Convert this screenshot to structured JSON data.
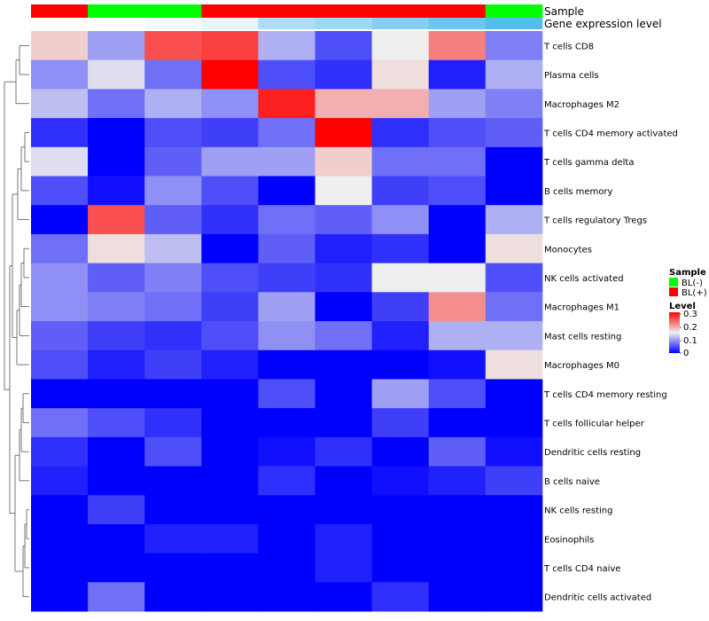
{
  "chart_data": {
    "type": "heatmap",
    "annotation_labels": {
      "sample": "Sample",
      "expression": "Gene expression level"
    },
    "rows": [
      "T cells CD8",
      "Plasma cells",
      "Macrophages M2",
      "T cells CD4 memory activated",
      "T cells gamma delta",
      "B cells memory",
      "T cells regulatory  Tregs",
      "Monocytes",
      "NK cells activated",
      "Macrophages M1",
      "Mast cells resting",
      "Macrophages M0",
      "T cells CD4 memory resting",
      "T cells follicular helper",
      "Dendritic cells resting",
      "B cells naive",
      "NK cells resting",
      "Eosinophils",
      "T cells CD4 naive",
      "Dendritic cells activated"
    ],
    "sample_groups": [
      "BL(+)",
      "BL(-)",
      "BL(-)",
      "BL(+)",
      "BL(+)",
      "BL(+)",
      "BL(+)",
      "BL(+)",
      "BL(-)"
    ],
    "expression_levels": [
      0.1,
      0.1,
      0.12,
      0.14,
      0.24,
      0.26,
      0.3,
      0.34,
      0.38
    ],
    "values": [
      [
        0.17,
        0.1,
        0.25,
        0.26,
        0.11,
        0.05,
        0.15,
        0.22,
        0.08
      ],
      [
        0.09,
        0.14,
        0.07,
        0.3,
        0.05,
        0.03,
        0.16,
        0.02,
        0.11
      ],
      [
        0.12,
        0.07,
        0.11,
        0.09,
        0.28,
        0.19,
        0.19,
        0.1,
        0.08
      ],
      [
        0.03,
        0.0,
        0.05,
        0.04,
        0.07,
        0.3,
        0.03,
        0.05,
        0.06
      ],
      [
        0.14,
        0.0,
        0.06,
        0.1,
        0.1,
        0.17,
        0.07,
        0.07,
        0.0
      ],
      [
        0.05,
        0.01,
        0.09,
        0.05,
        0.0,
        0.15,
        0.04,
        0.05,
        0.0
      ],
      [
        0.0,
        0.25,
        0.06,
        0.03,
        0.07,
        0.06,
        0.09,
        0.0,
        0.11
      ],
      [
        0.07,
        0.16,
        0.12,
        0.0,
        0.06,
        0.02,
        0.03,
        0.0,
        0.16
      ],
      [
        0.09,
        0.06,
        0.08,
        0.05,
        0.04,
        0.03,
        0.15,
        0.15,
        0.05
      ],
      [
        0.09,
        0.08,
        0.07,
        0.04,
        0.1,
        0.0,
        0.04,
        0.21,
        0.07
      ],
      [
        0.06,
        0.04,
        0.03,
        0.05,
        0.09,
        0.07,
        0.02,
        0.11,
        0.11
      ],
      [
        0.05,
        0.02,
        0.04,
        0.02,
        0.0,
        0.0,
        0.0,
        0.01,
        0.16
      ],
      [
        0.0,
        0.0,
        0.0,
        0.0,
        0.05,
        0.0,
        0.1,
        0.05,
        0.0
      ],
      [
        0.07,
        0.05,
        0.03,
        0.0,
        0.0,
        0.0,
        0.04,
        0.0,
        0.0
      ],
      [
        0.03,
        0.0,
        0.05,
        0.0,
        0.01,
        0.03,
        0.0,
        0.06,
        0.01
      ],
      [
        0.02,
        0.0,
        0.0,
        0.0,
        0.03,
        0.0,
        0.01,
        0.02,
        0.04
      ],
      [
        0.0,
        0.04,
        0.0,
        0.0,
        0.0,
        0.0,
        0.0,
        0.0,
        0.0
      ],
      [
        0.0,
        0.0,
        0.02,
        0.02,
        0.0,
        0.02,
        0.0,
        0.0,
        0.0
      ],
      [
        0.0,
        0.0,
        0.0,
        0.0,
        0.0,
        0.02,
        0.0,
        0.0,
        0.0
      ],
      [
        0.0,
        0.07,
        0.0,
        0.0,
        0.0,
        0.0,
        0.03,
        0.0,
        0.0
      ]
    ],
    "color_scale": {
      "min": 0,
      "mid": 0.15,
      "max": 0.3,
      "low": "#0000ff",
      "midColor": "#eeeeee",
      "high": "#ff0000"
    },
    "expression_colors": {
      "low": "#ffffff",
      "high": "#56bcec"
    },
    "legend": {
      "sample_title": "Sample",
      "sample_entries": [
        {
          "label": "BL(-)",
          "color": "#00ff00"
        },
        {
          "label": "BL(+)",
          "color": "#ff0000"
        }
      ],
      "level_title": "Level",
      "level_ticks": [
        "0.3",
        "0.2",
        "0.1",
        "0"
      ],
      "position": "right"
    }
  }
}
